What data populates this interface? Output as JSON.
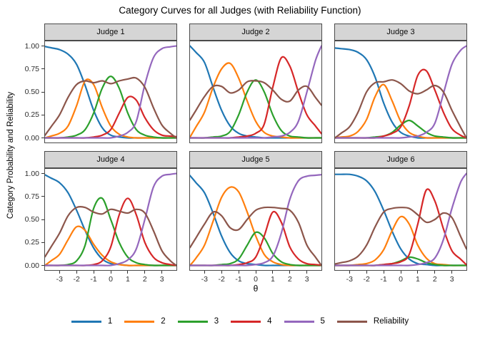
{
  "title": "Category Curves for all Judges (with Reliability Function)",
  "axes": {
    "x_label": "θ",
    "y_label": "Category  Probability  and  Reliability",
    "x_tick_labels": [
      "-3",
      "-2",
      "-1",
      "0",
      "1",
      "2",
      "3"
    ],
    "x_tick_values": [
      -3,
      -2,
      -1,
      0,
      1,
      2,
      3
    ],
    "y_tick_labels": [
      "1.00",
      "0.75",
      "0.50",
      "0.25",
      "0.00"
    ],
    "y_tick_values": [
      1.0,
      0.75,
      0.5,
      0.25,
      0.0
    ]
  },
  "legend": {
    "entries": [
      {
        "label": "1",
        "color": "#1f77b4"
      },
      {
        "label": "2",
        "color": "#ff7f0e"
      },
      {
        "label": "3",
        "color": "#2ca02c"
      },
      {
        "label": "4",
        "color": "#d62728"
      },
      {
        "label": "5",
        "color": "#9467bd"
      },
      {
        "label": "Reliability",
        "color": "#8c564b"
      }
    ]
  },
  "style": {
    "strip_fill": "#d5d5d5",
    "panel_border": "#4a4a4a",
    "background": "#ffffff",
    "tick_color": "#333333"
  },
  "chart_data": {
    "type": "line",
    "title": "Category Curves for all Judges (with Reliability Function)",
    "xlabel": "θ",
    "ylabel": "Category  Probability  and  Reliability",
    "xlim": [
      -3.85,
      3.85
    ],
    "ylim": [
      -0.05,
      1.05
    ],
    "grid": false,
    "legend_position": "bottom",
    "x": [
      -3.5,
      -3.0,
      -2.5,
      -2.0,
      -1.5,
      -1.0,
      -0.5,
      0.0,
      0.5,
      1.0,
      1.5,
      2.0,
      2.5,
      3.0,
      3.5
    ],
    "series_names": [
      "1",
      "2",
      "3",
      "4",
      "5",
      "Reliability"
    ],
    "panels": [
      {
        "facet": "Judge 1",
        "series": [
          {
            "name": "1",
            "color": "#1f77b4",
            "values": [
              0.98,
              0.96,
              0.91,
              0.8,
              0.57,
              0.3,
              0.11,
              0.03,
              0.01,
              0,
              0,
              0,
              0,
              0,
              0
            ]
          },
          {
            "name": "2",
            "color": "#ff7f0e",
            "values": [
              0.02,
              0.05,
              0.13,
              0.35,
              0.62,
              0.58,
              0.33,
              0.13,
              0.04,
              0.01,
              0,
              0,
              0,
              0,
              0
            ]
          },
          {
            "name": "3",
            "color": "#2ca02c",
            "values": [
              0,
              0,
              0.01,
              0.03,
              0.09,
              0.27,
              0.54,
              0.67,
              0.54,
              0.27,
              0.09,
              0.03,
              0.01,
              0,
              0
            ]
          },
          {
            "name": "4",
            "color": "#d62728",
            "values": [
              0,
              0,
              0,
              0,
              0,
              0.01,
              0.03,
              0.09,
              0.27,
              0.44,
              0.41,
              0.22,
              0.09,
              0.03,
              0.02
            ]
          },
          {
            "name": "5",
            "color": "#9467bd",
            "values": [
              0,
              0,
              0,
              0,
              0,
              0,
              0,
              0,
              0.02,
              0.06,
              0.18,
              0.58,
              0.87,
              0.97,
              0.99
            ]
          },
          {
            "name": "Reliability",
            "color": "#8c564b",
            "values": [
              0.12,
              0.25,
              0.44,
              0.58,
              0.62,
              0.6,
              0.62,
              0.59,
              0.62,
              0.64,
              0.65,
              0.55,
              0.33,
              0.14,
              0.05
            ]
          }
        ]
      },
      {
        "facet": "Judge 2",
        "series": [
          {
            "name": "1",
            "color": "#1f77b4",
            "values": [
              0.93,
              0.82,
              0.55,
              0.3,
              0.13,
              0.05,
              0.02,
              0.01,
              0,
              0,
              0,
              0,
              0,
              0,
              0
            ]
          },
          {
            "name": "2",
            "color": "#ff7f0e",
            "values": [
              0.12,
              0.28,
              0.55,
              0.75,
              0.81,
              0.65,
              0.4,
              0.18,
              0.06,
              0.02,
              0.01,
              0,
              0,
              0,
              0
            ]
          },
          {
            "name": "3",
            "color": "#2ca02c",
            "values": [
              0,
              0,
              0.01,
              0.02,
              0.07,
              0.25,
              0.5,
              0.63,
              0.5,
              0.25,
              0.08,
              0.02,
              0.01,
              0,
              0
            ]
          },
          {
            "name": "4",
            "color": "#d62728",
            "values": [
              0,
              0,
              0,
              0,
              0,
              0.01,
              0.02,
              0.05,
              0.15,
              0.55,
              0.87,
              0.78,
              0.5,
              0.25,
              0.13
            ]
          },
          {
            "name": "5",
            "color": "#9467bd",
            "values": [
              0,
              0,
              0,
              0,
              0,
              0,
              0,
              0,
              0,
              0.01,
              0.02,
              0.06,
              0.18,
              0.5,
              0.84
            ]
          },
          {
            "name": "Reliability",
            "color": "#8c564b",
            "values": [
              0.3,
              0.45,
              0.56,
              0.56,
              0.49,
              0.52,
              0.61,
              0.62,
              0.6,
              0.52,
              0.42,
              0.4,
              0.52,
              0.56,
              0.44
            ]
          }
        ]
      },
      {
        "facet": "Judge 3",
        "series": [
          {
            "name": "1",
            "color": "#1f77b4",
            "values": [
              0.97,
              0.96,
              0.93,
              0.85,
              0.66,
              0.38,
              0.17,
              0.06,
              0.02,
              0,
              0,
              0,
              0,
              0,
              0
            ]
          },
          {
            "name": "2",
            "color": "#ff7f0e",
            "values": [
              0.01,
              0.02,
              0.07,
              0.2,
              0.45,
              0.58,
              0.4,
              0.18,
              0.06,
              0.02,
              0,
              0,
              0,
              0,
              0
            ]
          },
          {
            "name": "3",
            "color": "#2ca02c",
            "values": [
              0,
              0,
              0,
              0,
              0.01,
              0.02,
              0.06,
              0.14,
              0.19,
              0.13,
              0.06,
              0.02,
              0.01,
              0,
              0
            ]
          },
          {
            "name": "4",
            "color": "#d62728",
            "values": [
              0,
              0,
              0,
              0,
              0,
              0.02,
              0.05,
              0.12,
              0.35,
              0.68,
              0.73,
              0.52,
              0.28,
              0.1,
              0.03
            ]
          },
          {
            "name": "5",
            "color": "#9467bd",
            "values": [
              0,
              0,
              0,
              0,
              0,
              0,
              0,
              0,
              0.01,
              0.02,
              0.06,
              0.16,
              0.48,
              0.8,
              0.95
            ]
          },
          {
            "name": "Reliability",
            "color": "#8c564b",
            "values": [
              0.05,
              0.12,
              0.28,
              0.5,
              0.6,
              0.61,
              0.63,
              0.59,
              0.51,
              0.48,
              0.52,
              0.57,
              0.5,
              0.3,
              0.12
            ]
          }
        ]
      },
      {
        "facet": "Judge 4",
        "series": [
          {
            "name": "1",
            "color": "#1f77b4",
            "values": [
              0.95,
              0.9,
              0.79,
              0.6,
              0.38,
              0.19,
              0.07,
              0.02,
              0.01,
              0,
              0,
              0,
              0,
              0,
              0
            ]
          },
          {
            "name": "2",
            "color": "#ff7f0e",
            "values": [
              0.05,
              0.12,
              0.28,
              0.42,
              0.38,
              0.23,
              0.11,
              0.04,
              0.01,
              0,
              0,
              0,
              0,
              0,
              0
            ]
          },
          {
            "name": "3",
            "color": "#2ca02c",
            "values": [
              0,
              0,
              0.01,
              0.05,
              0.22,
              0.62,
              0.73,
              0.5,
              0.25,
              0.09,
              0.03,
              0.01,
              0,
              0,
              0
            ]
          },
          {
            "name": "4",
            "color": "#d62728",
            "values": [
              0,
              0,
              0,
              0,
              0,
              0.01,
              0.05,
              0.2,
              0.55,
              0.73,
              0.55,
              0.25,
              0.09,
              0.03,
              0.01
            ]
          },
          {
            "name": "5",
            "color": "#9467bd",
            "values": [
              0,
              0,
              0,
              0,
              0,
              0,
              0,
              0,
              0.02,
              0.06,
              0.18,
              0.5,
              0.85,
              0.97,
              0.99
            ]
          },
          {
            "name": "Reliability",
            "color": "#8c564b",
            "values": [
              0.2,
              0.35,
              0.54,
              0.63,
              0.63,
              0.58,
              0.56,
              0.61,
              0.59,
              0.57,
              0.61,
              0.57,
              0.38,
              0.16,
              0.05
            ]
          }
        ]
      },
      {
        "facet": "Judge 5",
        "series": [
          {
            "name": "1",
            "color": "#1f77b4",
            "values": [
              0.9,
              0.79,
              0.57,
              0.32,
              0.14,
              0.05,
              0.02,
              0.01,
              0,
              0,
              0,
              0,
              0,
              0,
              0
            ]
          },
          {
            "name": "2",
            "color": "#ff7f0e",
            "values": [
              0.08,
              0.22,
              0.48,
              0.74,
              0.85,
              0.8,
              0.58,
              0.32,
              0.12,
              0.04,
              0.01,
              0,
              0,
              0,
              0
            ]
          },
          {
            "name": "3",
            "color": "#2ca02c",
            "values": [
              0,
              0,
              0,
              0.01,
              0.02,
              0.07,
              0.22,
              0.36,
              0.3,
              0.13,
              0.04,
              0.01,
              0,
              0,
              0
            ]
          },
          {
            "name": "4",
            "color": "#d62728",
            "values": [
              0,
              0,
              0,
              0,
              0,
              0.01,
              0.03,
              0.09,
              0.32,
              0.58,
              0.47,
              0.2,
              0.07,
              0.02,
              0.01
            ]
          },
          {
            "name": "5",
            "color": "#9467bd",
            "values": [
              0,
              0,
              0,
              0,
              0,
              0,
              0,
              0.01,
              0.03,
              0.1,
              0.35,
              0.72,
              0.92,
              0.97,
              0.98
            ]
          },
          {
            "name": "Reliability",
            "color": "#8c564b",
            "values": [
              0.3,
              0.45,
              0.58,
              0.54,
              0.41,
              0.39,
              0.5,
              0.6,
              0.63,
              0.63,
              0.62,
              0.6,
              0.47,
              0.22,
              0.09
            ]
          }
        ]
      },
      {
        "facet": "Judge 6",
        "series": [
          {
            "name": "1",
            "color": "#1f77b4",
            "values": [
              0.99,
              0.99,
              0.97,
              0.92,
              0.8,
              0.6,
              0.37,
              0.18,
              0.07,
              0.02,
              0.01,
              0,
              0,
              0,
              0
            ]
          },
          {
            "name": "2",
            "color": "#ff7f0e",
            "values": [
              0,
              0,
              0.01,
              0.02,
              0.06,
              0.17,
              0.38,
              0.53,
              0.45,
              0.22,
              0.08,
              0.02,
              0.01,
              0,
              0
            ]
          },
          {
            "name": "3",
            "color": "#2ca02c",
            "values": [
              0,
              0,
              0,
              0,
              0,
              0.01,
              0.02,
              0.05,
              0.09,
              0.07,
              0.03,
              0.01,
              0,
              0,
              0
            ]
          },
          {
            "name": "4",
            "color": "#d62728",
            "values": [
              0,
              0,
              0,
              0,
              0,
              0.01,
              0.02,
              0.04,
              0.12,
              0.45,
              0.82,
              0.7,
              0.4,
              0.16,
              0.07
            ]
          },
          {
            "name": "5",
            "color": "#9467bd",
            "values": [
              0,
              0,
              0,
              0,
              0,
              0,
              0,
              0,
              0,
              0.01,
              0.03,
              0.08,
              0.28,
              0.62,
              0.9
            ]
          },
          {
            "name": "Reliability",
            "color": "#8c564b",
            "values": [
              0.03,
              0.05,
              0.1,
              0.22,
              0.42,
              0.58,
              0.62,
              0.63,
              0.62,
              0.55,
              0.47,
              0.5,
              0.57,
              0.52,
              0.32
            ]
          }
        ]
      }
    ]
  }
}
